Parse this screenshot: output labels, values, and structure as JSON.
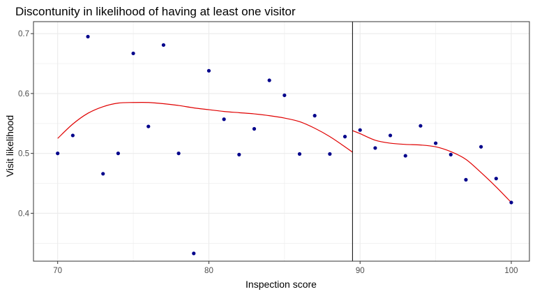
{
  "chart_data": {
    "type": "scatter",
    "title": "Discontunity in likelihood of having at least one visitor",
    "xlabel": "Inspection score",
    "ylabel": "Visit likelihood",
    "xlim": [
      68.4,
      101.2
    ],
    "ylim": [
      0.32,
      0.72
    ],
    "x_ticks": [
      70,
      80,
      90,
      100
    ],
    "y_ticks": [
      0.4,
      0.5,
      0.6,
      0.7
    ],
    "x_tick_labels": [
      "70",
      "80",
      "90",
      "100"
    ],
    "y_tick_labels": [
      "0.4",
      "0.5",
      "0.6",
      "0.7"
    ],
    "grid": true,
    "cutoff_x": 89.5,
    "colors": {
      "points": "#00008b",
      "fit": "#e00000",
      "cutoff": "#000000",
      "grid": "#ebebeb",
      "panel_border": "#333333"
    },
    "points": {
      "x": [
        70,
        71,
        72,
        73,
        74,
        75,
        76,
        77,
        78,
        79,
        80,
        81,
        82,
        83,
        84,
        85,
        86,
        87,
        88,
        89,
        90,
        91,
        92,
        93,
        94,
        95,
        96,
        97,
        98,
        99,
        100
      ],
      "y": [
        0.5,
        0.53,
        0.695,
        0.466,
        0.5,
        0.667,
        0.545,
        0.681,
        0.5,
        0.333,
        0.638,
        0.557,
        0.498,
        0.541,
        0.622,
        0.597,
        0.499,
        0.563,
        0.499,
        0.528,
        0.539,
        0.509,
        0.53,
        0.496,
        0.546,
        0.517,
        0.498,
        0.456,
        0.511,
        0.458,
        0.418
      ]
    },
    "fit_left": {
      "x": [
        70,
        71,
        72,
        73,
        74,
        75,
        76,
        77,
        78,
        79,
        80,
        81,
        82,
        83,
        84,
        85,
        86,
        87,
        88,
        89,
        89.5
      ],
      "y": [
        0.525,
        0.549,
        0.567,
        0.578,
        0.584,
        0.585,
        0.585,
        0.583,
        0.58,
        0.576,
        0.573,
        0.57,
        0.568,
        0.566,
        0.563,
        0.559,
        0.553,
        0.542,
        0.528,
        0.511,
        0.502
      ]
    },
    "fit_right": {
      "x": [
        89.5,
        90,
        91,
        92,
        93,
        94,
        95,
        96,
        97,
        98,
        99,
        100
      ],
      "y": [
        0.538,
        0.533,
        0.522,
        0.517,
        0.515,
        0.514,
        0.511,
        0.503,
        0.49,
        0.468,
        0.444,
        0.418
      ]
    }
  }
}
